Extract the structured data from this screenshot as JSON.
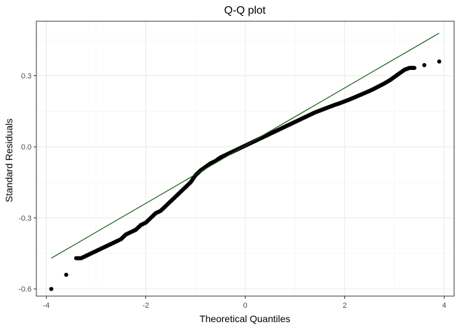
{
  "chart_data": {
    "type": "scatter",
    "title": "Q-Q plot",
    "xlabel": "Theoretical Quantiles",
    "ylabel": "Standard Residuals",
    "xlim": [
      -4.2,
      4.2
    ],
    "ylim": [
      -0.63,
      0.53
    ],
    "xticks": [
      -4,
      -2,
      0,
      2,
      4
    ],
    "xtick_labels": [
      "-4",
      "-2",
      "0",
      "2",
      "4"
    ],
    "yticks": [
      -0.6,
      -0.3,
      0.0,
      0.3
    ],
    "ytick_labels": [
      "-0.6",
      "-0.3",
      "0.0",
      "0.3"
    ],
    "grid": true,
    "reference_line": {
      "x": [
        -3.9,
        3.9
      ],
      "y": [
        -0.47,
        0.48
      ],
      "color": "#1a5c1a"
    },
    "points": {
      "x": [
        -3.9,
        -3.6,
        -3.4,
        -3.3,
        -3.2,
        -3.1,
        -3.0,
        -2.9,
        -2.8,
        -2.7,
        -2.6,
        -2.5,
        -2.4,
        -2.3,
        -2.2,
        -2.1,
        -2.0,
        -1.9,
        -1.8,
        -1.7,
        -1.6,
        -1.5,
        -1.4,
        -1.3,
        -1.2,
        -1.1,
        -1.0,
        -0.9,
        -0.8,
        -0.7,
        -0.6,
        -0.5,
        -0.4,
        -0.3,
        -0.2,
        -0.1,
        0.0,
        0.1,
        0.2,
        0.3,
        0.4,
        0.5,
        0.6,
        0.7,
        0.8,
        0.9,
        1.0,
        1.1,
        1.2,
        1.3,
        1.4,
        1.5,
        1.6,
        1.7,
        1.8,
        1.9,
        2.0,
        2.1,
        2.2,
        2.3,
        2.4,
        2.5,
        2.6,
        2.7,
        2.8,
        2.9,
        3.0,
        3.1,
        3.2,
        3.3,
        3.4,
        3.6,
        3.9
      ],
      "y": [
        -0.6,
        -0.54,
        -0.47,
        -0.47,
        -0.46,
        -0.45,
        -0.44,
        -0.43,
        -0.42,
        -0.41,
        -0.4,
        -0.39,
        -0.37,
        -0.36,
        -0.35,
        -0.33,
        -0.32,
        -0.3,
        -0.28,
        -0.27,
        -0.25,
        -0.23,
        -0.21,
        -0.19,
        -0.17,
        -0.15,
        -0.12,
        -0.1,
        -0.085,
        -0.07,
        -0.06,
        -0.045,
        -0.035,
        -0.025,
        -0.015,
        -0.005,
        0.005,
        0.015,
        0.025,
        0.035,
        0.045,
        0.055,
        0.065,
        0.075,
        0.085,
        0.095,
        0.105,
        0.115,
        0.125,
        0.135,
        0.145,
        0.153,
        0.161,
        0.169,
        0.177,
        0.184,
        0.192,
        0.2,
        0.209,
        0.218,
        0.227,
        0.236,
        0.246,
        0.257,
        0.268,
        0.28,
        0.295,
        0.31,
        0.325,
        0.333,
        0.333,
        0.345,
        0.36
      ]
    }
  }
}
